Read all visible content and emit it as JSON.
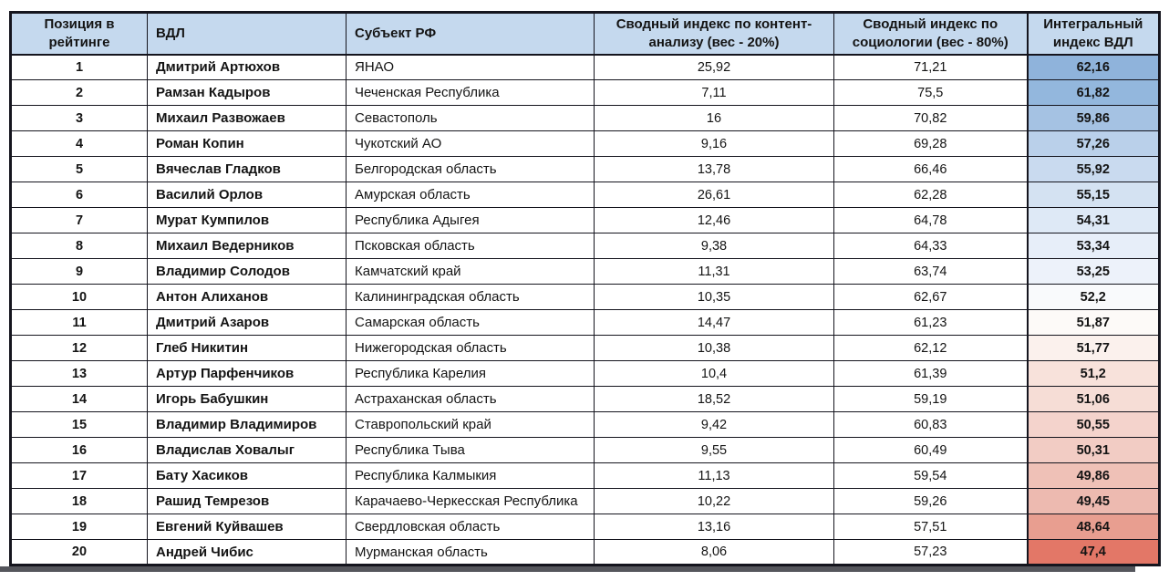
{
  "table": {
    "columns": [
      "Позиция в рейтинге",
      "ВДЛ",
      "Субъект РФ",
      "Сводный индекс по контент-анализу (вес - 20%)",
      "Сводный индекс по социологии (вес - 80%)",
      "Интегральный индекс ВДЛ"
    ],
    "header_bg": "#c5d9ee",
    "border_color": "#15151e",
    "rows": [
      {
        "rank": "1",
        "name": "Дмитрий Артюхов",
        "region": "ЯНАО",
        "content": "25,92",
        "sociology": "71,21",
        "integral": "62,16",
        "integral_color": "#8fb3db"
      },
      {
        "rank": "2",
        "name": "Рамзан Кадыров",
        "region": "Чеченская Республика",
        "content": "7,11",
        "sociology": "75,5",
        "integral": "61,82",
        "integral_color": "#93b7dd"
      },
      {
        "rank": "3",
        "name": "Михаил Развожаев",
        "region": "Севастополь",
        "content": "16",
        "sociology": "70,82",
        "integral": "59,86",
        "integral_color": "#a5c2e3"
      },
      {
        "rank": "4",
        "name": "Роман Копин",
        "region": "Чукотский АО",
        "content": "9,16",
        "sociology": "69,28",
        "integral": "57,26",
        "integral_color": "#bad0ea"
      },
      {
        "rank": "5",
        "name": "Вячеслав Гладков",
        "region": "Белгородская область",
        "content": "13,78",
        "sociology": "66,46",
        "integral": "55,92",
        "integral_color": "#c9daef"
      },
      {
        "rank": "6",
        "name": "Василий Орлов",
        "region": "Амурская область",
        "content": "26,61",
        "sociology": "62,28",
        "integral": "55,15",
        "integral_color": "#d4e2f2"
      },
      {
        "rank": "7",
        "name": "Мурат Кумпилов",
        "region": "Республика Адыгея",
        "content": "12,46",
        "sociology": "64,78",
        "integral": "54,31",
        "integral_color": "#dee9f6"
      },
      {
        "rank": "8",
        "name": "Михаил Ведерников",
        "region": "Псковская область",
        "content": "9,38",
        "sociology": "64,33",
        "integral": "53,34",
        "integral_color": "#e7eef9"
      },
      {
        "rank": "9",
        "name": "Владимир Солодов",
        "region": "Камчатский край",
        "content": "11,31",
        "sociology": "63,74",
        "integral": "53,25",
        "integral_color": "#edf2fa"
      },
      {
        "rank": "10",
        "name": "Антон Алиханов",
        "region": "Калининградская область",
        "content": "10,35",
        "sociology": "62,67",
        "integral": "52,2",
        "integral_color": "#f9fafc"
      },
      {
        "rank": "11",
        "name": "Дмитрий Азаров",
        "region": "Самарская область",
        "content": "14,47",
        "sociology": "61,23",
        "integral": "51,87",
        "integral_color": "#fdfaf8"
      },
      {
        "rank": "12",
        "name": "Глеб Никитин",
        "region": "Нижегородская область",
        "content": "10,38",
        "sociology": "62,12",
        "integral": "51,77",
        "integral_color": "#fbf1ed"
      },
      {
        "rank": "13",
        "name": "Артур Парфенчиков",
        "region": "Республика Карелия",
        "content": "10,4",
        "sociology": "61,39",
        "integral": "51,2",
        "integral_color": "#f8e2db"
      },
      {
        "rank": "14",
        "name": "Игорь Бабушкин",
        "region": "Астраханская область",
        "content": "18,52",
        "sociology": "59,19",
        "integral": "51,06",
        "integral_color": "#f6ddd6"
      },
      {
        "rank": "15",
        "name": "Владимир Владимиров",
        "region": "Ставропольский край",
        "content": "9,42",
        "sociology": "60,83",
        "integral": "50,55",
        "integral_color": "#f4d3cc"
      },
      {
        "rank": "16",
        "name": "Владислав Ховалыг",
        "region": "Республика Тыва",
        "content": "9,55",
        "sociology": "60,49",
        "integral": "50,31",
        "integral_color": "#f2ccc4"
      },
      {
        "rank": "17",
        "name": "Бату Хасиков",
        "region": "Республика Калмыкия",
        "content": "11,13",
        "sociology": "59,54",
        "integral": "49,86",
        "integral_color": "#efc1b7"
      },
      {
        "rank": "18",
        "name": "Рашид Темрезов",
        "region": "Карачаево-Черкесская Республика",
        "content": "10,22",
        "sociology": "59,26",
        "integral": "49,45",
        "integral_color": "#edbab0"
      },
      {
        "rank": "19",
        "name": "Евгений Куйвашев",
        "region": "Свердловская область",
        "content": "13,16",
        "sociology": "57,51",
        "integral": "48,64",
        "integral_color": "#e89e90"
      },
      {
        "rank": "20",
        "name": "Андрей Чибис",
        "region": "Мурманская область",
        "content": "8,06",
        "sociology": "57,23",
        "integral": "47,4",
        "integral_color": "#e37767"
      }
    ]
  }
}
